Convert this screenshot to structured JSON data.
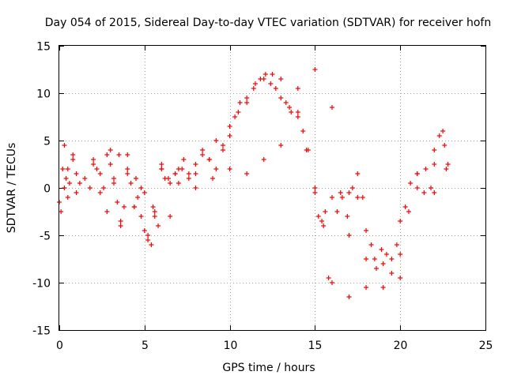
{
  "chart_data": {
    "type": "scatter",
    "title": "Day 054 of 2015, Sidereal Day-to-day VTEC variation (SDTVAR) for receiver hofn",
    "xlabel": "GPS time / hours",
    "ylabel": "SDTVAR / TECUs",
    "xlim": [
      0,
      25
    ],
    "ylim": [
      -15,
      15
    ],
    "xticks": [
      0,
      5,
      10,
      15,
      20,
      25
    ],
    "yticks": [
      -15,
      -10,
      -5,
      0,
      5,
      10,
      15
    ],
    "grid": true,
    "marker": "+",
    "color": "#ff0000",
    "series": [
      {
        "name": "hofn",
        "x": [
          0.0,
          0.1,
          0.2,
          0.3,
          0.4,
          0.5,
          0.6,
          0.8,
          1.0,
          1.2,
          1.5,
          1.8,
          2.0,
          2.2,
          2.4,
          2.6,
          2.8,
          3.0,
          3.2,
          3.4,
          3.6,
          3.8,
          4.0,
          4.2,
          4.4,
          4.6,
          4.8,
          5.0,
          5.2,
          5.4,
          5.6,
          5.8,
          6.0,
          6.2,
          6.5,
          6.8,
          7.0,
          7.3,
          7.6,
          8.0,
          8.4,
          8.8,
          9.2,
          9.6,
          10.0,
          10.3,
          10.6,
          11.0,
          11.4,
          11.8,
          12.1,
          12.4,
          12.7,
          13.0,
          13.3,
          13.6,
          14.0,
          14.3,
          14.6,
          15.0,
          15.2,
          15.4,
          15.6,
          15.8,
          16.0,
          16.3,
          16.6,
          16.9,
          17.0,
          17.2,
          17.5,
          17.8,
          18.0,
          18.3,
          18.6,
          18.9,
          19.2,
          19.5,
          19.8,
          20.0,
          20.3,
          20.6,
          21.0,
          21.4,
          21.8,
          22.0,
          22.3,
          22.6,
          22.8,
          0.3,
          0.5,
          0.8,
          1.0,
          2.0,
          2.4,
          2.8,
          3.2,
          3.6,
          4.0,
          4.4,
          4.8,
          5.2,
          5.6,
          6.0,
          6.4,
          6.8,
          7.2,
          7.6,
          8.0,
          8.4,
          8.8,
          9.2,
          9.6,
          10.0,
          10.5,
          11.0,
          11.5,
          12.0,
          12.5,
          13.0,
          13.5,
          14.0,
          14.5,
          15.0,
          15.5,
          16.0,
          16.5,
          17.0,
          17.5,
          18.0,
          18.5,
          19.0,
          19.5,
          20.0,
          20.5,
          21.0,
          21.5,
          22.0,
          22.5,
          3.0,
          3.5,
          4.0,
          4.5,
          5.0,
          5.5,
          6.0,
          6.5,
          7.0,
          8.0,
          9.0,
          10.0,
          11.0,
          12.0,
          13.0,
          14.0,
          15.0,
          16.0,
          17.0,
          18.0,
          19.0,
          20.0,
          21.0,
          22.0,
          22.7
        ],
        "y": [
          -1.5,
          -2.5,
          2.0,
          4.5,
          1.0,
          -1.0,
          0.5,
          3.0,
          1.5,
          0.5,
          1.0,
          0.0,
          3.0,
          2.0,
          1.5,
          0.0,
          3.5,
          4.0,
          1.0,
          -1.5,
          -4.0,
          -2.0,
          3.5,
          0.5,
          -2.0,
          -1.0,
          -3.0,
          -4.5,
          -5.5,
          -6.0,
          -3.0,
          -4.0,
          2.5,
          1.0,
          0.5,
          1.5,
          2.0,
          3.0,
          1.5,
          2.5,
          4.0,
          3.0,
          5.0,
          4.5,
          5.5,
          7.5,
          9.0,
          9.5,
          10.5,
          11.5,
          12.0,
          11.0,
          10.5,
          9.5,
          9.0,
          8.0,
          8.0,
          6.0,
          4.0,
          -0.5,
          -3.0,
          -3.5,
          -2.5,
          -9.5,
          -10.0,
          -2.5,
          -1.0,
          -3.0,
          -11.5,
          0.0,
          1.5,
          -1.0,
          -7.5,
          -6.0,
          -8.5,
          -6.5,
          -7.0,
          -7.5,
          -6.0,
          -3.5,
          -2.0,
          0.5,
          1.5,
          -0.5,
          0.0,
          4.0,
          5.5,
          4.5,
          2.5,
          0.0,
          2.0,
          3.5,
          -0.5,
          2.5,
          -0.5,
          -2.5,
          0.5,
          -3.5,
          1.5,
          -2.0,
          0.0,
          -5.0,
          -2.5,
          2.0,
          1.0,
          1.5,
          2.0,
          1.0,
          1.5,
          3.5,
          3.0,
          2.0,
          4.0,
          6.5,
          8.0,
          9.0,
          11.0,
          11.5,
          12.0,
          11.5,
          8.5,
          7.5,
          4.0,
          0.0,
          -4.0,
          -1.0,
          -0.5,
          -5.0,
          -1.0,
          -4.5,
          -7.5,
          -8.0,
          -9.0,
          -7.0,
          -2.5,
          0.0,
          2.0,
          2.5,
          6.0,
          2.5,
          3.5,
          2.0,
          1.0,
          -0.5,
          -2.0,
          2.0,
          -3.0,
          0.5,
          0.0,
          1.0,
          2.0,
          1.5,
          3.0,
          4.5,
          10.5,
          12.5,
          8.5,
          -0.5,
          -10.5,
          -10.5,
          -9.5,
          1.5,
          -0.5,
          2.0
        ]
      }
    ]
  }
}
